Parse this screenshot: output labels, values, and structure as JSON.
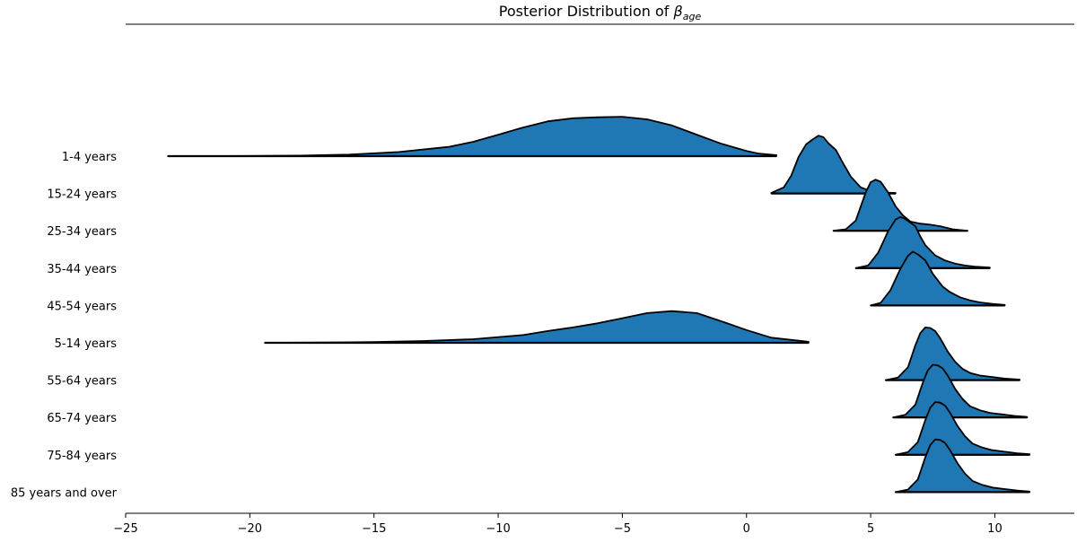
{
  "chart_data": {
    "type": "area",
    "title_prefix": "Posterior Distribution of ",
    "title_symbol": "β",
    "title_subscript": "age",
    "xlim": [
      -25,
      13.2
    ],
    "xticks": [
      -25,
      -20,
      -15,
      -10,
      -5,
      0,
      5,
      10
    ],
    "xtick_labels": [
      "−25",
      "−20",
      "−15",
      "−10",
      "−5",
      "0",
      "5",
      "10"
    ],
    "grid": false,
    "fill_color": "#1f77b4",
    "line_color": "#000000",
    "series": [
      {
        "name": "1-4 years",
        "x": [
          -23.3,
          -20,
          -18,
          -16,
          -14,
          -12,
          -11,
          -10,
          -9,
          -8,
          -7,
          -6,
          -5,
          -4,
          -3,
          -2,
          -1,
          0,
          0.5,
          1.2
        ],
        "density": [
          0,
          0.003,
          0.01,
          0.03,
          0.08,
          0.18,
          0.28,
          0.42,
          0.56,
          0.68,
          0.74,
          0.76,
          0.77,
          0.72,
          0.6,
          0.42,
          0.24,
          0.1,
          0.05,
          0.02
        ]
      },
      {
        "name": "15-24 years",
        "x": [
          1.0,
          1.5,
          1.8,
          2.1,
          2.4,
          2.7,
          2.9,
          3.1,
          3.3,
          3.6,
          3.9,
          4.2,
          4.6,
          5.0,
          5.5,
          6.0
        ],
        "density": [
          0.01,
          0.12,
          0.35,
          0.72,
          0.96,
          1.07,
          1.13,
          1.1,
          0.98,
          0.85,
          0.58,
          0.33,
          0.12,
          0.05,
          0.02,
          0.01
        ]
      },
      {
        "name": "25-34 years",
        "x": [
          3.5,
          4.0,
          4.4,
          4.8,
          5.0,
          5.2,
          5.4,
          5.7,
          6.0,
          6.3,
          6.6,
          7.0,
          7.4,
          7.8,
          8.3,
          8.9
        ],
        "density": [
          0,
          0.03,
          0.2,
          0.75,
          0.95,
          1.0,
          0.96,
          0.75,
          0.48,
          0.3,
          0.18,
          0.14,
          0.12,
          0.09,
          0.03,
          0
        ]
      },
      {
        "name": "35-44 years",
        "x": [
          4.4,
          4.9,
          5.3,
          5.7,
          6.0,
          6.2,
          6.4,
          6.8,
          7.0,
          7.2,
          7.6,
          8.0,
          8.4,
          8.8,
          9.2,
          9.8
        ],
        "density": [
          0,
          0.05,
          0.3,
          0.72,
          0.95,
          1.0,
          0.96,
          0.82,
          0.62,
          0.45,
          0.25,
          0.15,
          0.09,
          0.05,
          0.03,
          0.01
        ]
      },
      {
        "name": "45-54 years",
        "x": [
          5.0,
          5.4,
          5.8,
          6.2,
          6.5,
          6.7,
          6.9,
          7.2,
          7.5,
          7.9,
          8.2,
          8.6,
          9.0,
          9.4,
          9.9,
          10.4
        ],
        "density": [
          0,
          0.05,
          0.3,
          0.72,
          0.97,
          1.05,
          1.0,
          0.88,
          0.62,
          0.37,
          0.26,
          0.16,
          0.1,
          0.06,
          0.03,
          0.01
        ]
      },
      {
        "name": "5-14 years",
        "x": [
          -19.4,
          -17,
          -15,
          -13,
          -11,
          -9,
          -8,
          -7,
          -6,
          -5,
          -4,
          -3,
          -2,
          -1,
          0,
          1,
          2.5
        ],
        "density": [
          0,
          0.005,
          0.015,
          0.035,
          0.07,
          0.15,
          0.23,
          0.3,
          0.38,
          0.48,
          0.58,
          0.62,
          0.58,
          0.42,
          0.25,
          0.1,
          0.02
        ]
      },
      {
        "name": "55-64 years",
        "x": [
          5.6,
          6.1,
          6.5,
          6.8,
          7.0,
          7.2,
          7.4,
          7.6,
          7.8,
          8.1,
          8.4,
          8.7,
          9.0,
          9.4,
          9.9,
          10.4,
          11.0
        ],
        "density": [
          0,
          0.05,
          0.25,
          0.68,
          0.92,
          1.03,
          1.02,
          0.96,
          0.82,
          0.56,
          0.36,
          0.22,
          0.14,
          0.09,
          0.06,
          0.03,
          0.01
        ]
      },
      {
        "name": "65-74 years",
        "x": [
          5.9,
          6.4,
          6.8,
          7.1,
          7.3,
          7.5,
          7.7,
          7.9,
          8.1,
          8.4,
          8.7,
          9.0,
          9.4,
          9.8,
          10.3,
          10.8,
          11.3
        ],
        "density": [
          0,
          0.05,
          0.25,
          0.68,
          0.92,
          1.03,
          1.02,
          0.96,
          0.82,
          0.56,
          0.36,
          0.22,
          0.14,
          0.09,
          0.06,
          0.03,
          0.01
        ]
      },
      {
        "name": "75-84 years",
        "x": [
          6.0,
          6.5,
          6.9,
          7.2,
          7.4,
          7.6,
          7.8,
          8.0,
          8.2,
          8.5,
          8.8,
          9.1,
          9.5,
          9.9,
          10.4,
          10.9,
          11.4
        ],
        "density": [
          0,
          0.05,
          0.25,
          0.68,
          0.92,
          1.03,
          1.02,
          0.96,
          0.82,
          0.56,
          0.36,
          0.22,
          0.14,
          0.09,
          0.06,
          0.03,
          0.01
        ]
      },
      {
        "name": "85 years and over",
        "x": [
          6.0,
          6.5,
          6.9,
          7.2,
          7.4,
          7.6,
          7.8,
          8.0,
          8.2,
          8.5,
          8.8,
          9.1,
          9.5,
          9.9,
          10.4,
          10.9,
          11.4
        ],
        "density": [
          0,
          0.05,
          0.25,
          0.68,
          0.92,
          1.03,
          1.02,
          0.96,
          0.82,
          0.56,
          0.36,
          0.22,
          0.14,
          0.09,
          0.06,
          0.03,
          0.01
        ]
      }
    ]
  }
}
